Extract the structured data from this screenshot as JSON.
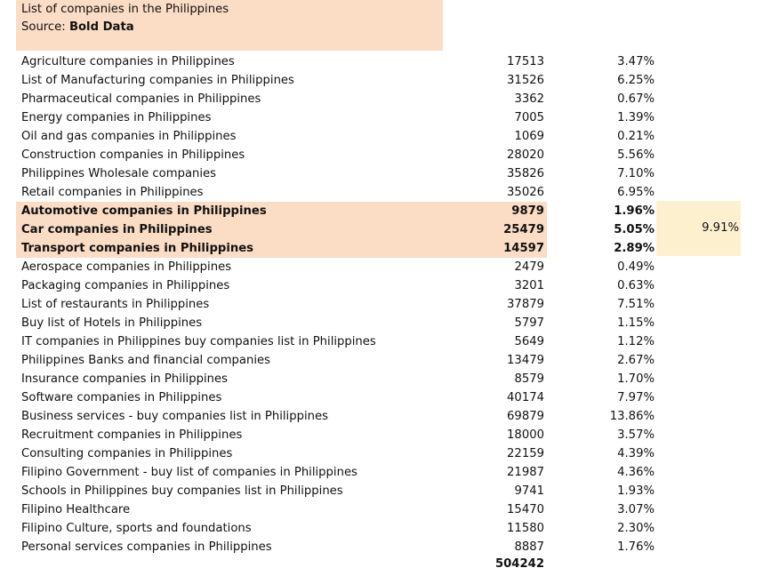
{
  "header": {
    "title": "List of companies in the Philippines",
    "source_label": "Source: ",
    "source_value": "Bold Data"
  },
  "rows": [
    {
      "name": "Agriculture companies in Philippines",
      "count": "17513",
      "pct": "3.47%"
    },
    {
      "name": "List of Manufacturing companies in Philippines",
      "count": "31526",
      "pct": "6.25%"
    },
    {
      "name": "Pharmaceutical companies in Philippines",
      "count": "3362",
      "pct": "0.67%"
    },
    {
      "name": "Energy companies in Philippines",
      "count": "7005",
      "pct": "1.39%"
    },
    {
      "name": "Oil and gas companies in Philippines",
      "count": "1069",
      "pct": "0.21%"
    },
    {
      "name": "Construction companies in Philippines",
      "count": "28020",
      "pct": "5.56%"
    },
    {
      "name": "Philippines Wholesale companies",
      "count": "35826",
      "pct": "7.10%"
    },
    {
      "name": "Retail companies in Philippines",
      "count": "35026",
      "pct": "6.95%"
    },
    {
      "name": "Automotive companies in Philippines",
      "count": "9879",
      "pct": "1.96%",
      "highlight": true
    },
    {
      "name": "Car companies in Philippines",
      "count": "25479",
      "pct": "5.05%",
      "highlight": true
    },
    {
      "name": "Transport companies in Philippines",
      "count": "14597",
      "pct": "2.89%",
      "highlight": true
    },
    {
      "name": "Aerospace companies in Philippines",
      "count": "2479",
      "pct": "0.49%"
    },
    {
      "name": "Packaging companies in Philippines",
      "count": "3201",
      "pct": "0.63%"
    },
    {
      "name": "List of restaurants in Philippines",
      "count": "37879",
      "pct": "7.51%"
    },
    {
      "name": "Buy list of Hotels in Philippines",
      "count": "5797",
      "pct": "1.15%"
    },
    {
      "name": "IT companies in Philippines buy companies list in Philippines",
      "count": "5649",
      "pct": "1.12%"
    },
    {
      "name": "Philippines Banks and financial companies",
      "count": "13479",
      "pct": "2.67%"
    },
    {
      "name": "Insurance companies in Philippines",
      "count": "8579",
      "pct": "1.70%"
    },
    {
      "name": "Software companies in Philippines",
      "count": "40174",
      "pct": "7.97%"
    },
    {
      "name": "Business services - buy companies list in Philippines",
      "count": "69879",
      "pct": "13.86%"
    },
    {
      "name": "Recruitment companies in Philippines",
      "count": "18000",
      "pct": "3.57%"
    },
    {
      "name": "Consulting companies in Philippines",
      "count": "22159",
      "pct": "4.39%"
    },
    {
      "name": "Filipino Government - buy list of companies in Philippines",
      "count": "21987",
      "pct": "4.36%"
    },
    {
      "name": "Schools in Philippines buy companies list in Philippines",
      "count": "9741",
      "pct": "1.93%"
    },
    {
      "name": "Filipino Healthcare",
      "count": "15470",
      "pct": "3.07%"
    },
    {
      "name": "Filipino Culture, sports and foundations",
      "count": "11580",
      "pct": "2.30%"
    },
    {
      "name": "Personal services companies in Philippines",
      "count": "8887",
      "pct": "1.76%"
    }
  ],
  "highlight_sum": "9.91%",
  "total": "504242",
  "colors": {
    "highlight": "#fbdcc5",
    "side_box": "#fdf0cf"
  }
}
